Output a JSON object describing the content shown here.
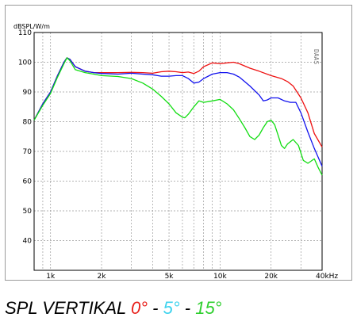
{
  "chart_data": {
    "type": "line",
    "y_unit_label": "dBSPL/W/m",
    "x_unit": "kHz",
    "watermark": "DAAS",
    "x_scale": "log",
    "xlim_hz": [
      800,
      40000
    ],
    "ylim": [
      30,
      110
    ],
    "y_ticks": [
      40,
      50,
      60,
      70,
      80,
      90,
      100,
      110
    ],
    "x_tick_labels": [
      {
        "hz": 1000,
        "label": "1k"
      },
      {
        "hz": 2000,
        "label": "2k"
      },
      {
        "hz": 5000,
        "label": "5k"
      },
      {
        "hz": 10000,
        "label": "10k"
      },
      {
        "hz": 20000,
        "label": "20k"
      },
      {
        "hz": 40000,
        "label": "40kHz"
      }
    ],
    "x_gridlines_hz": [
      900,
      1000,
      2000,
      3000,
      4000,
      5000,
      6000,
      7000,
      8000,
      9000,
      10000,
      20000,
      30000,
      40000
    ],
    "grid": true,
    "series": [
      {
        "color": "#ee1111",
        "points": [
          [
            800,
            80.5
          ],
          [
            900,
            86
          ],
          [
            1000,
            90
          ],
          [
            1100,
            95.5
          ],
          [
            1200,
            100
          ],
          [
            1250,
            101.5
          ],
          [
            1300,
            101
          ],
          [
            1400,
            98.5
          ],
          [
            1600,
            97
          ],
          [
            1800,
            96.5
          ],
          [
            2000,
            96.5
          ],
          [
            2500,
            96.5
          ],
          [
            3000,
            96.6
          ],
          [
            3500,
            96.5
          ],
          [
            4000,
            96.3
          ],
          [
            4500,
            96.8
          ],
          [
            5000,
            97
          ],
          [
            5500,
            96.8
          ],
          [
            6000,
            96.5
          ],
          [
            6500,
            96.7
          ],
          [
            7000,
            96.2
          ],
          [
            7500,
            97
          ],
          [
            8000,
            98.5
          ],
          [
            9000,
            99.8
          ],
          [
            10000,
            99.5
          ],
          [
            11000,
            99.8
          ],
          [
            12000,
            100
          ],
          [
            13000,
            99.5
          ],
          [
            15000,
            98
          ],
          [
            17000,
            97
          ],
          [
            20000,
            95.5
          ],
          [
            23000,
            94.5
          ],
          [
            25000,
            93.5
          ],
          [
            27000,
            92
          ],
          [
            30000,
            88
          ],
          [
            33000,
            83
          ],
          [
            36000,
            76
          ],
          [
            40000,
            71.5
          ]
        ]
      },
      {
        "color": "#1111ee",
        "points": [
          [
            800,
            80.5
          ],
          [
            900,
            86
          ],
          [
            1000,
            90
          ],
          [
            1100,
            95.5
          ],
          [
            1200,
            100
          ],
          [
            1250,
            101.5
          ],
          [
            1300,
            101
          ],
          [
            1400,
            98.5
          ],
          [
            1600,
            97
          ],
          [
            1800,
            96.5
          ],
          [
            2000,
            96.2
          ],
          [
            2500,
            96
          ],
          [
            3000,
            96.3
          ],
          [
            3500,
            96
          ],
          [
            4000,
            95.8
          ],
          [
            4500,
            95.3
          ],
          [
            5000,
            95.3
          ],
          [
            5500,
            95.5
          ],
          [
            6000,
            95.5
          ],
          [
            6500,
            94.5
          ],
          [
            7000,
            93
          ],
          [
            7500,
            93.3
          ],
          [
            8000,
            94.5
          ],
          [
            9000,
            96
          ],
          [
            10000,
            96.5
          ],
          [
            11000,
            96.5
          ],
          [
            12000,
            96
          ],
          [
            13000,
            95
          ],
          [
            15000,
            92
          ],
          [
            17000,
            89
          ],
          [
            18000,
            87
          ],
          [
            19000,
            87.3
          ],
          [
            20000,
            88
          ],
          [
            22000,
            88
          ],
          [
            24000,
            87
          ],
          [
            26000,
            86.5
          ],
          [
            28000,
            86.5
          ],
          [
            30000,
            83
          ],
          [
            33000,
            76.5
          ],
          [
            36000,
            71
          ],
          [
            40000,
            65
          ]
        ]
      },
      {
        "color": "#11dd11",
        "points": [
          [
            800,
            80.5
          ],
          [
            900,
            85.5
          ],
          [
            1000,
            89.5
          ],
          [
            1100,
            95
          ],
          [
            1200,
            99.5
          ],
          [
            1250,
            101.5
          ],
          [
            1300,
            100.5
          ],
          [
            1400,
            97.5
          ],
          [
            1600,
            96.5
          ],
          [
            1800,
            96
          ],
          [
            2000,
            95.5
          ],
          [
            2500,
            95.2
          ],
          [
            3000,
            94.5
          ],
          [
            3500,
            93
          ],
          [
            4000,
            91
          ],
          [
            4500,
            88.5
          ],
          [
            5000,
            86
          ],
          [
            5500,
            83
          ],
          [
            6000,
            81.5
          ],
          [
            6200,
            81.3
          ],
          [
            6500,
            82.5
          ],
          [
            7000,
            85
          ],
          [
            7500,
            87
          ],
          [
            8000,
            86.5
          ],
          [
            9000,
            87
          ],
          [
            10000,
            87.5
          ],
          [
            11000,
            86
          ],
          [
            12000,
            84
          ],
          [
            13000,
            81
          ],
          [
            14000,
            78
          ],
          [
            15000,
            75
          ],
          [
            16000,
            74
          ],
          [
            17000,
            75.5
          ],
          [
            18000,
            78
          ],
          [
            19000,
            80
          ],
          [
            20000,
            80.5
          ],
          [
            21000,
            79
          ],
          [
            22000,
            75.5
          ],
          [
            23000,
            72
          ],
          [
            24000,
            71
          ],
          [
            25000,
            72.5
          ],
          [
            27000,
            74
          ],
          [
            29000,
            72
          ],
          [
            31000,
            67
          ],
          [
            33000,
            66
          ],
          [
            36000,
            67.5
          ],
          [
            38000,
            64.5
          ],
          [
            40000,
            62
          ]
        ]
      }
    ]
  },
  "caption": {
    "prefix": "SPL VERTIKAL ",
    "angle_0": "0°",
    "sep_1": " - ",
    "angle_5": "5°",
    "sep_2": " - ",
    "angle_15": "15°"
  }
}
